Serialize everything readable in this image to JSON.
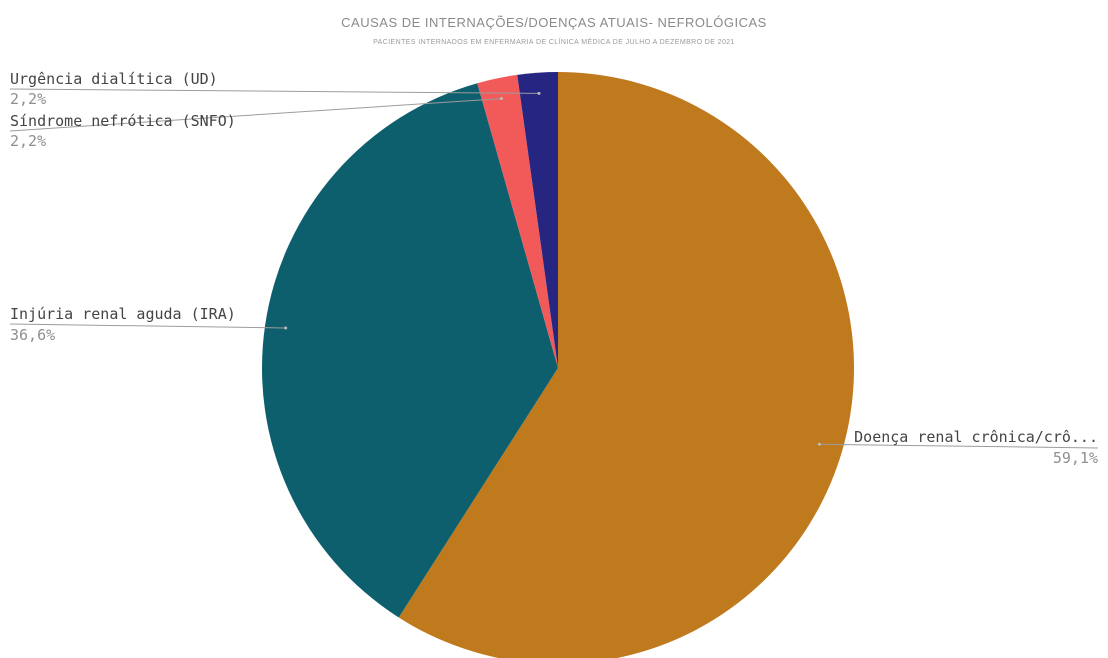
{
  "chart_data": {
    "type": "pie",
    "title": "CAUSAS DE INTERNAÇÕES/DOENÇAS ATUAIS- NEFROLÓGICAS",
    "subtitle": "PACIENTES INTERNADOS EM ENFERMARIA DE CLÍNICA MÉDICA DE JULHO A DEZEMBRO DE 2021",
    "slices": [
      {
        "label": "Doença renal crônica/crô...",
        "value": 59.1,
        "value_label": "59,1%",
        "color": "#c07a1e"
      },
      {
        "label": "Injúria renal aguda (IRA)",
        "value": 36.6,
        "value_label": "36,6%",
        "color": "#0e5f6e"
      },
      {
        "label": "Síndrome nefrótica (SNFO)",
        "value": 2.2,
        "value_label": "2,2%",
        "color": "#f25a5a"
      },
      {
        "label": "Urgência dialítica (UD)",
        "value": 2.2,
        "value_label": "2,2%",
        "color": "#262682"
      }
    ],
    "start_angle": "12 o'clock",
    "direction": "clockwise",
    "legend": "none"
  }
}
